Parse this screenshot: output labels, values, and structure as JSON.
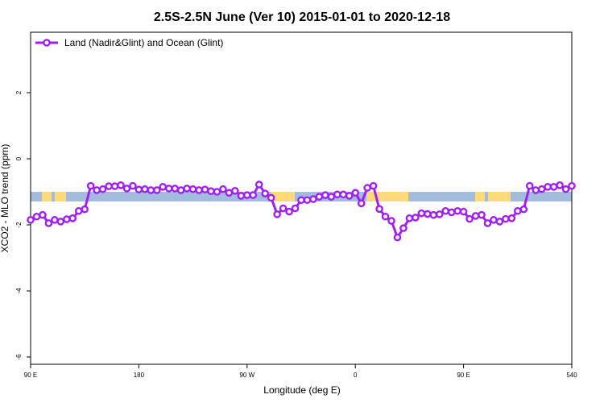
{
  "chart_data": {
    "type": "line",
    "title": "2.5S-2.5N June (Ver 10)   2015-01-01 to 2020-12-18",
    "x_label": "Longitude (deg E)",
    "y_label": "XCO2 - MLO trend (ppm)",
    "x": [
      90,
      95,
      100,
      105,
      110,
      115,
      120,
      125,
      130,
      135,
      140,
      145,
      150,
      155,
      160,
      165,
      170,
      175,
      180,
      185,
      190,
      195,
      200,
      205,
      210,
      215,
      220,
      225,
      230,
      235,
      240,
      245,
      250,
      255,
      260,
      265,
      270,
      275,
      280,
      285,
      290,
      295,
      300,
      305,
      310,
      315,
      320,
      325,
      330,
      335,
      340,
      345,
      350,
      355,
      360,
      365,
      370,
      375,
      380,
      385,
      390,
      395,
      400,
      405,
      410,
      415,
      420,
      425,
      430,
      435,
      440,
      445,
      450,
      455,
      460,
      465,
      470,
      475,
      480,
      485,
      490,
      495,
      500,
      505,
      510,
      515,
      520,
      525,
      530,
      535,
      540
    ],
    "series": [
      {
        "name": "Land (Nadir&Glint) and Ocean (Glint)",
        "color": "#a020f0",
        "values": [
          -1.85,
          -1.75,
          -1.7,
          -1.95,
          -1.85,
          -1.9,
          -1.83,
          -1.8,
          -1.58,
          -1.53,
          -0.82,
          -0.95,
          -0.92,
          -0.83,
          -0.83,
          -0.8,
          -0.9,
          -0.82,
          -0.93,
          -0.92,
          -0.95,
          -0.95,
          -0.85,
          -0.9,
          -0.9,
          -0.95,
          -0.9,
          -0.92,
          -0.95,
          -0.93,
          -0.98,
          -1.0,
          -0.92,
          -1.03,
          -0.97,
          -1.12,
          -1.1,
          -1.1,
          -0.78,
          -1.05,
          -1.18,
          -1.68,
          -1.5,
          -1.6,
          -1.5,
          -1.25,
          -1.25,
          -1.22,
          -1.15,
          -1.1,
          -1.15,
          -1.08,
          -1.08,
          -1.12,
          -1.03,
          -1.35,
          -0.88,
          -0.82,
          -1.52,
          -1.75,
          -1.88,
          -2.38,
          -2.1,
          -1.8,
          -1.78,
          -1.65,
          -1.67,
          -1.7,
          -1.68,
          -1.58,
          -1.62,
          -1.58,
          -1.6,
          -1.82,
          -1.73,
          -1.7,
          -1.95,
          -1.85,
          -1.9,
          -1.82,
          -1.8,
          -1.58,
          -1.53,
          -0.82,
          -0.95,
          -0.92,
          -0.85,
          -0.85,
          -0.8,
          -0.92,
          -0.82
        ]
      }
    ],
    "xlim": [
      90,
      540
    ],
    "xticks": [
      {
        "value": 90,
        "label": "90 E"
      },
      180,
      {
        "value": 270,
        "label": "90 W"
      },
      {
        "value": 360,
        "label": "0"
      },
      {
        "value": 450,
        "label": "90 E"
      },
      540
    ],
    "ylim": [
      -6.22,
      3.83
    ],
    "yticks": [
      2,
      0,
      -2,
      -4,
      -6
    ],
    "legend": "top-left"
  }
}
